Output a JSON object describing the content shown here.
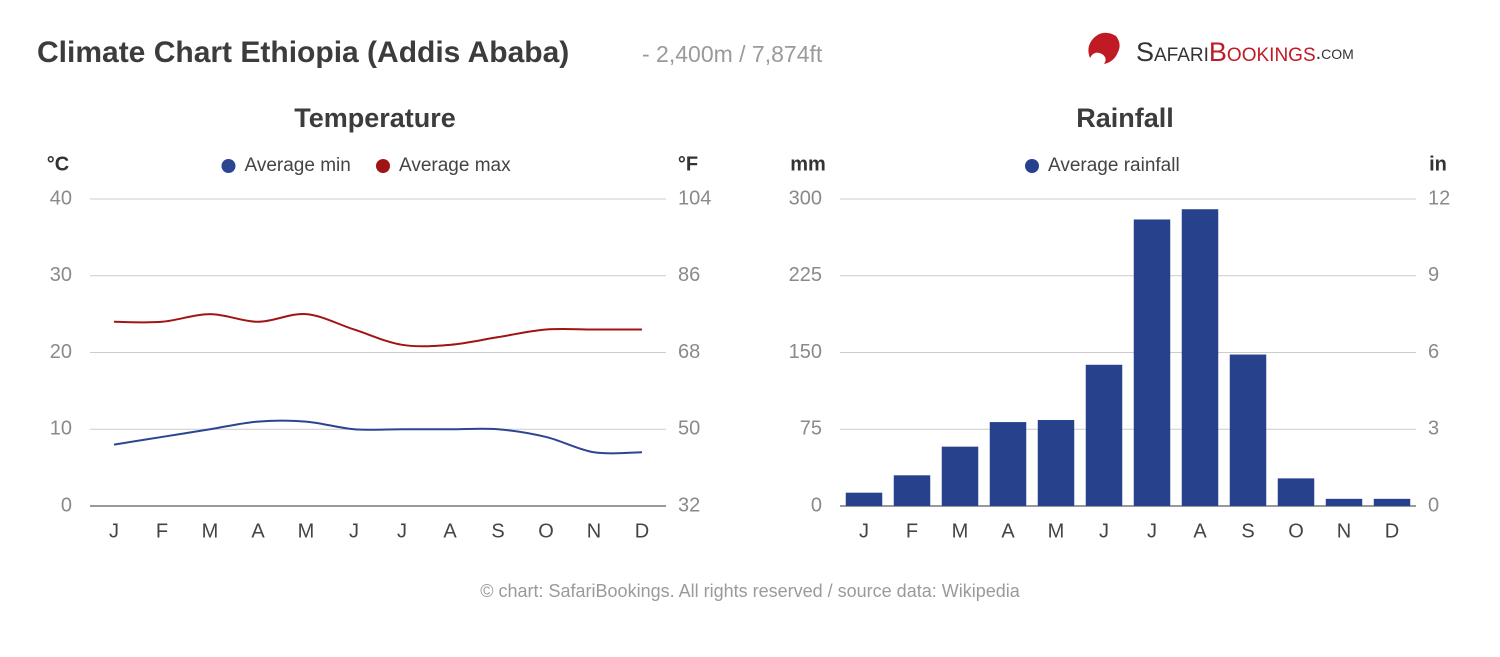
{
  "header": {
    "title": "Climate Chart Ethiopia (Addis Ababa)",
    "subtitle": "- 2,400m / 7,874ft",
    "logo": [
      "Safari",
      "Bookings",
      ".com"
    ]
  },
  "chart_data": [
    {
      "type": "line",
      "title": "Temperature",
      "y_label": "°C",
      "y2_label": "°F",
      "categories": [
        "J",
        "F",
        "M",
        "A",
        "M",
        "J",
        "J",
        "A",
        "S",
        "O",
        "N",
        "D"
      ],
      "series": [
        {
          "name": "Average min",
          "color": "#2b4590",
          "values": [
            8,
            9,
            10,
            11,
            11,
            10,
            10,
            10,
            10,
            9,
            7,
            7
          ]
        },
        {
          "name": "Average max",
          "color": "#a01414",
          "values": [
            24,
            24,
            25,
            24,
            25,
            23,
            21,
            21,
            22,
            23,
            23,
            23
          ]
        }
      ],
      "ylim": [
        0,
        40
      ],
      "yticks": [
        0,
        10,
        20,
        30,
        40
      ],
      "y2lim": [
        32,
        104
      ],
      "y2ticks": [
        32,
        50,
        68,
        86,
        104
      ],
      "grid": true
    },
    {
      "type": "bar",
      "title": "Rainfall",
      "y_label": "mm",
      "y2_label": "in",
      "categories": [
        "J",
        "F",
        "M",
        "A",
        "M",
        "J",
        "J",
        "A",
        "S",
        "O",
        "N",
        "D"
      ],
      "series": [
        {
          "name": "Average rainfall",
          "color": "#27418c",
          "values": [
            13,
            30,
            58,
            82,
            84,
            138,
            280,
            290,
            148,
            27,
            7,
            7
          ]
        }
      ],
      "ylim": [
        0,
        300
      ],
      "yticks": [
        0,
        75,
        150,
        225,
        300
      ],
      "y2lim": [
        0,
        12
      ],
      "y2ticks": [
        0,
        3,
        6,
        9,
        12
      ],
      "grid": true
    }
  ],
  "footer": "© chart: SafariBookings. All rights reserved / source data: Wikipedia"
}
